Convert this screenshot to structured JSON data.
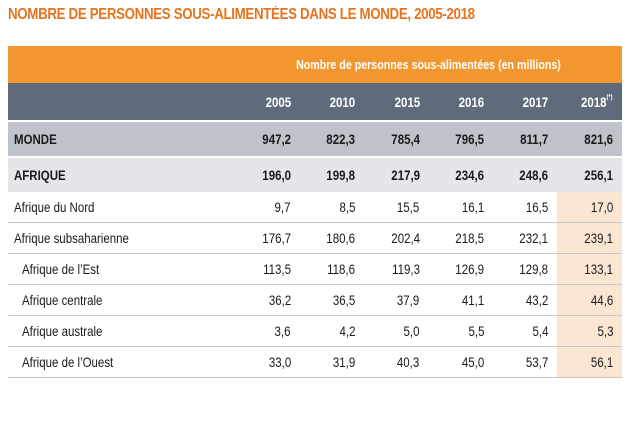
{
  "title": "NOMBRE DE PERSONNES SOUS-ALIMENTÉES DANS LE MONDE, 2005-2018",
  "header": {
    "unit_label": "Nombre de personnes sous-alimentées (en millions)",
    "years": [
      "2005",
      "2010",
      "2015",
      "2016",
      "2017",
      "2018"
    ],
    "last_year_note": "(*)"
  },
  "rows": [
    {
      "label": "MONDE",
      "values": [
        "947,2",
        "822,3",
        "785,4",
        "796,5",
        "811,7",
        "821,6"
      ]
    },
    {
      "label": "AFRIQUE",
      "values": [
        "196,0",
        "199,8",
        "217,9",
        "234,6",
        "248,6",
        "256,1"
      ]
    },
    {
      "label": "Afrique du Nord",
      "values": [
        "9,7",
        "8,5",
        "15,5",
        "16,1",
        "16,5",
        "17,0"
      ]
    },
    {
      "label": "Afrique subsaharienne",
      "values": [
        "176,7",
        "180,6",
        "202,4",
        "218,5",
        "232,1",
        "239,1"
      ]
    },
    {
      "label": "Afrique de l’Est",
      "values": [
        "113,5",
        "118,6",
        "119,3",
        "126,9",
        "129,8",
        "133,1"
      ]
    },
    {
      "label": "Afrique centrale",
      "values": [
        "36,2",
        "36,5",
        "37,9",
        "41,1",
        "43,2",
        "44,6"
      ]
    },
    {
      "label": "Afrique australe",
      "values": [
        "3,6",
        "4,2",
        "5,0",
        "5,5",
        "5,4",
        "5,3"
      ]
    },
    {
      "label": "Afrique de l’Ouest",
      "values": [
        "33,0",
        "31,9",
        "40,3",
        "45,0",
        "53,7",
        "56,1"
      ]
    }
  ],
  "colors": {
    "title": "#e8731e",
    "header_orange": "#f2962f",
    "header_gray": "#5f6b7b",
    "world_row": "#bfc4cc",
    "africa_row": "#e4e6ea",
    "highlight_2018": "#fbe6d3"
  }
}
